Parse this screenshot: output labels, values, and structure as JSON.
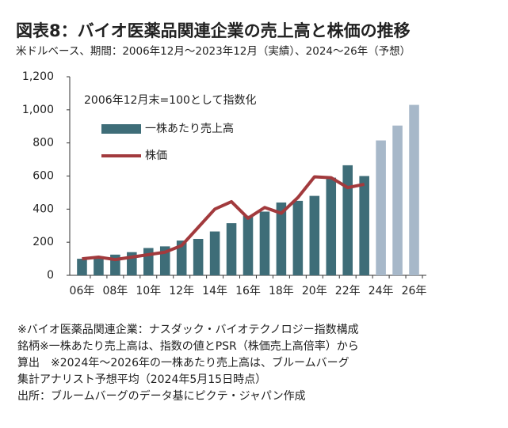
{
  "chart_data": {
    "type": "bar_line",
    "title": "図表8：バイオ医薬品関連企業の売上高と株価の推移",
    "subtitle": "米ドルベース、期間：2006年12月～2023年12月（実績）、2024～26年（予想）",
    "annotation": "2006年12月末=100として指数化",
    "categories": [
      "06年",
      null,
      "08年",
      null,
      "10年",
      null,
      "12年",
      null,
      "14年",
      null,
      "16年",
      null,
      "18年",
      null,
      "20年",
      null,
      "22年",
      null,
      "24年",
      null,
      "26年"
    ],
    "series": [
      {
        "name": "一株あたり売上高",
        "type": "bar",
        "color": "#3e6d78",
        "colors": [
          "#3e6d78",
          "#3e6d78",
          "#3e6d78",
          "#3e6d78",
          "#3e6d78",
          "#3e6d78",
          "#3e6d78",
          "#3e6d78",
          "#3e6d78",
          "#3e6d78",
          "#3e6d78",
          "#3e6d78",
          "#3e6d78",
          "#3e6d78",
          "#3e6d78",
          "#3e6d78",
          "#3e6d78",
          "#3e6d78",
          "#a7b8c9",
          "#a7b8c9",
          "#a7b8c9"
        ],
        "values": [
          100,
          115,
          125,
          140,
          165,
          175,
          210,
          220,
          265,
          315,
          360,
          385,
          440,
          450,
          480,
          590,
          665,
          600,
          815,
          905,
          1030
        ]
      },
      {
        "name": "株価",
        "type": "line",
        "color": "#a23a3d",
        "values": [
          100,
          110,
          95,
          110,
          125,
          140,
          180,
          290,
          400,
          445,
          345,
          410,
          375,
          470,
          595,
          590,
          530,
          550,
          null,
          null,
          null
        ]
      }
    ],
    "ylim": [
      0,
      1200
    ],
    "yticks": [
      0,
      200,
      400,
      600,
      800,
      {
        "value": 1000,
        "label": "1,000"
      },
      {
        "value": 1200,
        "label": "1,200"
      }
    ],
    "grid": false,
    "notes": [
      "※バイオ医薬品関連企業：ナスダック・バイオテクノロジー指数構成",
      "銘柄※一株あたり売上高は、指数の値とPSR（株価売上高倍率）から",
      "算出　※2024年～2026年の一株あたり売上高は、ブルームバーグ",
      "集計アナリスト予想平均（2024年5月15日時点）",
      "出所：ブルームバーグのデータ基にピクテ・ジャパン作成"
    ]
  }
}
